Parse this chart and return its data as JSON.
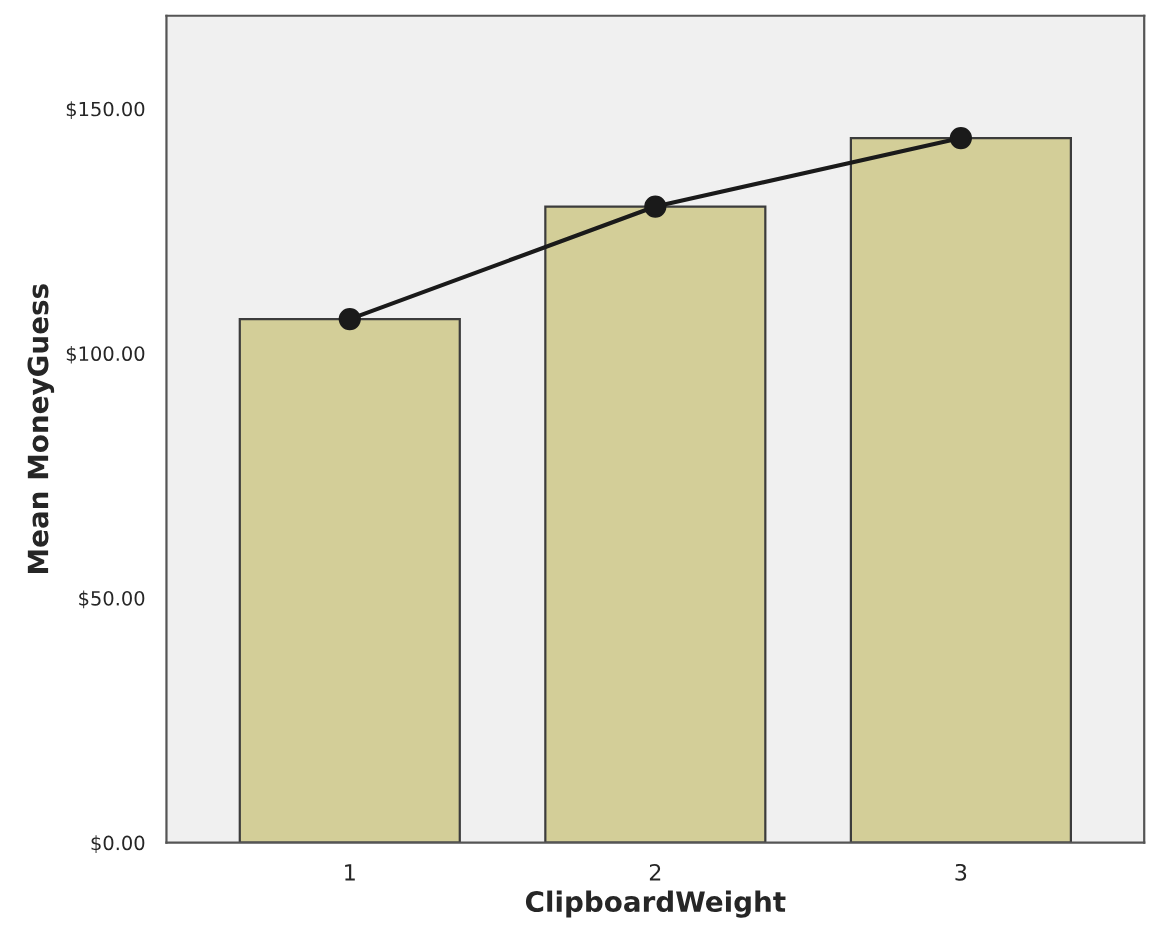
{
  "chart_data": {
    "type": "bar",
    "xlabel": "ClipboardWeight",
    "ylabel": "Mean MoneyGuess",
    "categories": [
      "1",
      "2",
      "3"
    ],
    "series": [
      {
        "color": "#d3ce98",
        "values": [
          107,
          130,
          144
        ]
      },
      {
        "type": "line",
        "color": "#1a1a1a",
        "values": [
          107,
          130,
          144
        ],
        "marker": "circle"
      }
    ],
    "ylim": [
      0,
      169
    ],
    "yticks": [
      {
        "value": 0,
        "label": "$0.00"
      },
      {
        "value": 50,
        "label": "$50.00"
      },
      {
        "value": 100,
        "label": "$100.00"
      },
      {
        "value": 150,
        "label": "$150.00"
      }
    ],
    "grid": false,
    "legend": false
  }
}
